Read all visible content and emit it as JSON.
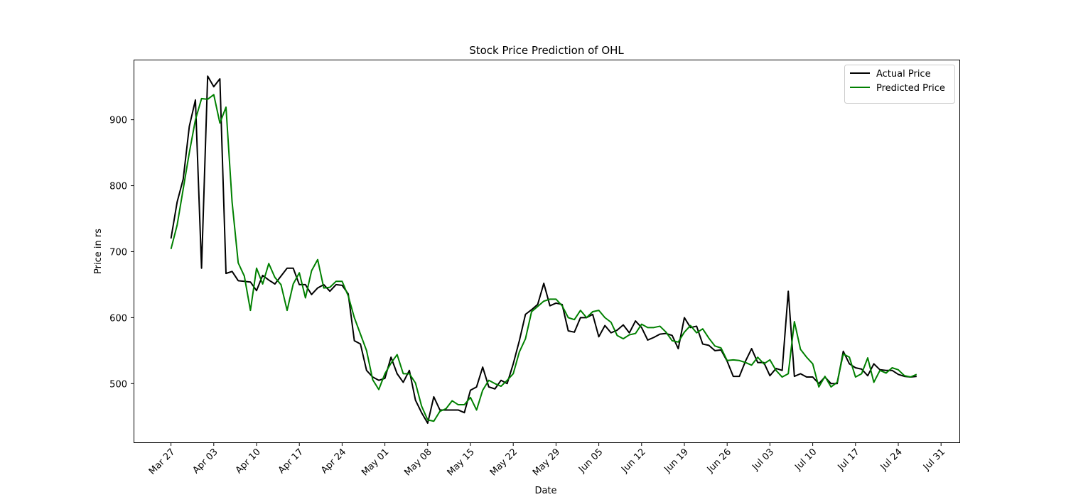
{
  "chart_data": {
    "type": "line",
    "title": "Stock Price Prediction of OHL",
    "xlabel": "Date",
    "ylabel": "Price in rs",
    "x_range": [
      "2023-03-21",
      "2023-08-03"
    ],
    "ylim": [
      411,
      990
    ],
    "grid": false,
    "legend_position": "top-right",
    "x_ticks": [
      {
        "label": "Mar 27",
        "date": "2023-03-27"
      },
      {
        "label": "Apr 03",
        "date": "2023-04-03"
      },
      {
        "label": "Apr 10",
        "date": "2023-04-10"
      },
      {
        "label": "Apr 17",
        "date": "2023-04-17"
      },
      {
        "label": "Apr 24",
        "date": "2023-04-24"
      },
      {
        "label": "May 01",
        "date": "2023-05-01"
      },
      {
        "label": "May 08",
        "date": "2023-05-08"
      },
      {
        "label": "May 15",
        "date": "2023-05-15"
      },
      {
        "label": "May 22",
        "date": "2023-05-22"
      },
      {
        "label": "May 29",
        "date": "2023-05-29"
      },
      {
        "label": "Jun 05",
        "date": "2023-06-05"
      },
      {
        "label": "Jun 12",
        "date": "2023-06-12"
      },
      {
        "label": "Jun 19",
        "date": "2023-06-19"
      },
      {
        "label": "Jun 26",
        "date": "2023-06-26"
      },
      {
        "label": "Jul 03",
        "date": "2023-07-03"
      },
      {
        "label": "Jul 10",
        "date": "2023-07-10"
      },
      {
        "label": "Jul 17",
        "date": "2023-07-17"
      },
      {
        "label": "Jul 24",
        "date": "2023-07-24"
      },
      {
        "label": "Jul 31",
        "date": "2023-07-31"
      }
    ],
    "y_ticks": [
      500,
      600,
      700,
      800,
      900
    ],
    "series": [
      {
        "name": "Actual Price",
        "color": "#000000",
        "points": [
          [
            "2023-03-27",
            720
          ],
          [
            "2023-03-28",
            775
          ],
          [
            "2023-03-29",
            810
          ],
          [
            "2023-03-30",
            890
          ],
          [
            "2023-03-31",
            930
          ],
          [
            "2023-04-01",
            675
          ],
          [
            "2023-04-02",
            966
          ],
          [
            "2023-04-03",
            950
          ],
          [
            "2023-04-04",
            962
          ],
          [
            "2023-04-05",
            667
          ],
          [
            "2023-04-06",
            670
          ],
          [
            "2023-04-07",
            656
          ],
          [
            "2023-04-08",
            655
          ],
          [
            "2023-04-09",
            654
          ],
          [
            "2023-04-10",
            641
          ],
          [
            "2023-04-11",
            664
          ],
          [
            "2023-04-12",
            657
          ],
          [
            "2023-04-13",
            651
          ],
          [
            "2023-04-14",
            663
          ],
          [
            "2023-04-15",
            675
          ],
          [
            "2023-04-16",
            675
          ],
          [
            "2023-04-17",
            650
          ],
          [
            "2023-04-18",
            650
          ],
          [
            "2023-04-19",
            635
          ],
          [
            "2023-04-20",
            645
          ],
          [
            "2023-04-21",
            650
          ],
          [
            "2023-04-22",
            640
          ],
          [
            "2023-04-23",
            650
          ],
          [
            "2023-04-24",
            649
          ],
          [
            "2023-04-25",
            636
          ],
          [
            "2023-04-26",
            565
          ],
          [
            "2023-04-27",
            560
          ],
          [
            "2023-04-28",
            520
          ],
          [
            "2023-04-29",
            510
          ],
          [
            "2023-04-30",
            505
          ],
          [
            "2023-05-01",
            508
          ],
          [
            "2023-05-02",
            540
          ],
          [
            "2023-05-03",
            515
          ],
          [
            "2023-05-04",
            502
          ],
          [
            "2023-05-05",
            520
          ],
          [
            "2023-05-06",
            475
          ],
          [
            "2023-05-07",
            456
          ],
          [
            "2023-05-08",
            440
          ],
          [
            "2023-05-09",
            480
          ],
          [
            "2023-05-10",
            460
          ],
          [
            "2023-05-11",
            460
          ],
          [
            "2023-05-12",
            460
          ],
          [
            "2023-05-13",
            460
          ],
          [
            "2023-05-14",
            456
          ],
          [
            "2023-05-15",
            490
          ],
          [
            "2023-05-16",
            495
          ],
          [
            "2023-05-17",
            525
          ],
          [
            "2023-05-18",
            495
          ],
          [
            "2023-05-19",
            492
          ],
          [
            "2023-05-20",
            505
          ],
          [
            "2023-05-21",
            500
          ],
          [
            "2023-05-22",
            530
          ],
          [
            "2023-05-23",
            565
          ],
          [
            "2023-05-24",
            605
          ],
          [
            "2023-05-25",
            612
          ],
          [
            "2023-05-26",
            620
          ],
          [
            "2023-05-27",
            652
          ],
          [
            "2023-05-28",
            618
          ],
          [
            "2023-05-29",
            622
          ],
          [
            "2023-05-30",
            620
          ],
          [
            "2023-05-31",
            580
          ],
          [
            "2023-06-01",
            578
          ],
          [
            "2023-06-02",
            600
          ],
          [
            "2023-06-03",
            600
          ],
          [
            "2023-06-04",
            605
          ],
          [
            "2023-06-05",
            571
          ],
          [
            "2023-06-06",
            588
          ],
          [
            "2023-06-07",
            577
          ],
          [
            "2023-06-08",
            581
          ],
          [
            "2023-06-09",
            589
          ],
          [
            "2023-06-10",
            577
          ],
          [
            "2023-06-11",
            595
          ],
          [
            "2023-06-12",
            585
          ],
          [
            "2023-06-13",
            566
          ],
          [
            "2023-06-14",
            570
          ],
          [
            "2023-06-15",
            575
          ],
          [
            "2023-06-16",
            576
          ],
          [
            "2023-06-17",
            573
          ],
          [
            "2023-06-18",
            553
          ],
          [
            "2023-06-19",
            600
          ],
          [
            "2023-06-20",
            585
          ],
          [
            "2023-06-21",
            587
          ],
          [
            "2023-06-22",
            560
          ],
          [
            "2023-06-23",
            558
          ],
          [
            "2023-06-24",
            550
          ],
          [
            "2023-06-25",
            551
          ],
          [
            "2023-06-26",
            534
          ],
          [
            "2023-06-27",
            511
          ],
          [
            "2023-06-28",
            511
          ],
          [
            "2023-06-29",
            534
          ],
          [
            "2023-06-30",
            553
          ],
          [
            "2023-07-01",
            532
          ],
          [
            "2023-07-02",
            532
          ],
          [
            "2023-07-03",
            512
          ],
          [
            "2023-07-04",
            523
          ],
          [
            "2023-07-05",
            520
          ],
          [
            "2023-07-06",
            640
          ],
          [
            "2023-07-07",
            511
          ],
          [
            "2023-07-08",
            515
          ],
          [
            "2023-07-09",
            510
          ],
          [
            "2023-07-10",
            510
          ],
          [
            "2023-07-11",
            500
          ],
          [
            "2023-07-12",
            510
          ],
          [
            "2023-07-13",
            500
          ],
          [
            "2023-07-14",
            500
          ],
          [
            "2023-07-15",
            549
          ],
          [
            "2023-07-16",
            530
          ],
          [
            "2023-07-17",
            524
          ],
          [
            "2023-07-18",
            522
          ],
          [
            "2023-07-19",
            512
          ],
          [
            "2023-07-20",
            530
          ],
          [
            "2023-07-21",
            521
          ],
          [
            "2023-07-22",
            520
          ],
          [
            "2023-07-23",
            520
          ],
          [
            "2023-07-24",
            514
          ],
          [
            "2023-07-25",
            511
          ],
          [
            "2023-07-26",
            510
          ],
          [
            "2023-07-27",
            511
          ]
        ]
      },
      {
        "name": "Predicted Price",
        "color": "#008000",
        "points": [
          [
            "2023-03-27",
            704
          ],
          [
            "2023-03-28",
            740
          ],
          [
            "2023-03-29",
            795
          ],
          [
            "2023-03-30",
            850
          ],
          [
            "2023-03-31",
            900
          ],
          [
            "2023-04-01",
            932
          ],
          [
            "2023-04-02",
            931
          ],
          [
            "2023-04-03",
            938
          ],
          [
            "2023-04-04",
            895
          ],
          [
            "2023-04-05",
            919
          ],
          [
            "2023-04-06",
            775
          ],
          [
            "2023-04-07",
            683
          ],
          [
            "2023-04-08",
            663
          ],
          [
            "2023-04-09",
            611
          ],
          [
            "2023-04-10",
            675
          ],
          [
            "2023-04-11",
            651
          ],
          [
            "2023-04-12",
            682
          ],
          [
            "2023-04-13",
            661
          ],
          [
            "2023-04-14",
            650
          ],
          [
            "2023-04-15",
            611
          ],
          [
            "2023-04-16",
            651
          ],
          [
            "2023-04-17",
            668
          ],
          [
            "2023-04-18",
            630
          ],
          [
            "2023-04-19",
            671
          ],
          [
            "2023-04-20",
            688
          ],
          [
            "2023-04-21",
            645
          ],
          [
            "2023-04-22",
            646
          ],
          [
            "2023-04-23",
            655
          ],
          [
            "2023-04-24",
            655
          ],
          [
            "2023-04-25",
            633
          ],
          [
            "2023-04-26",
            600
          ],
          [
            "2023-04-27",
            575
          ],
          [
            "2023-04-28",
            550
          ],
          [
            "2023-04-29",
            506
          ],
          [
            "2023-04-30",
            491
          ],
          [
            "2023-05-01",
            515
          ],
          [
            "2023-05-02",
            531
          ],
          [
            "2023-05-03",
            544
          ],
          [
            "2023-05-04",
            515
          ],
          [
            "2023-05-05",
            515
          ],
          [
            "2023-05-06",
            501
          ],
          [
            "2023-05-07",
            466
          ],
          [
            "2023-05-08",
            445
          ],
          [
            "2023-05-09",
            443
          ],
          [
            "2023-05-10",
            458
          ],
          [
            "2023-05-11",
            462
          ],
          [
            "2023-05-12",
            474
          ],
          [
            "2023-05-13",
            468
          ],
          [
            "2023-05-14",
            468
          ],
          [
            "2023-05-15",
            479
          ],
          [
            "2023-05-16",
            460
          ],
          [
            "2023-05-17",
            490
          ],
          [
            "2023-05-18",
            505
          ],
          [
            "2023-05-19",
            500
          ],
          [
            "2023-05-20",
            496
          ],
          [
            "2023-05-21",
            505
          ],
          [
            "2023-05-22",
            515
          ],
          [
            "2023-05-23",
            548
          ],
          [
            "2023-05-24",
            568
          ],
          [
            "2023-05-25",
            609
          ],
          [
            "2023-05-26",
            617
          ],
          [
            "2023-05-27",
            625
          ],
          [
            "2023-05-28",
            628
          ],
          [
            "2023-05-29",
            628
          ],
          [
            "2023-05-30",
            618
          ],
          [
            "2023-05-31",
            600
          ],
          [
            "2023-06-01",
            597
          ],
          [
            "2023-06-02",
            611
          ],
          [
            "2023-06-03",
            600
          ],
          [
            "2023-06-04",
            609
          ],
          [
            "2023-06-05",
            611
          ],
          [
            "2023-06-06",
            600
          ],
          [
            "2023-06-07",
            593
          ],
          [
            "2023-06-08",
            573
          ],
          [
            "2023-06-09",
            568
          ],
          [
            "2023-06-10",
            574
          ],
          [
            "2023-06-11",
            576
          ],
          [
            "2023-06-12",
            590
          ],
          [
            "2023-06-13",
            585
          ],
          [
            "2023-06-14",
            585
          ],
          [
            "2023-06-15",
            587
          ],
          [
            "2023-06-16",
            578
          ],
          [
            "2023-06-17",
            565
          ],
          [
            "2023-06-18",
            563
          ],
          [
            "2023-06-19",
            578
          ],
          [
            "2023-06-20",
            588
          ],
          [
            "2023-06-21",
            577
          ],
          [
            "2023-06-22",
            583
          ],
          [
            "2023-06-23",
            569
          ],
          [
            "2023-06-24",
            557
          ],
          [
            "2023-06-25",
            554
          ],
          [
            "2023-06-26",
            535
          ],
          [
            "2023-06-27",
            536
          ],
          [
            "2023-06-28",
            535
          ],
          [
            "2023-06-29",
            532
          ],
          [
            "2023-06-30",
            528
          ],
          [
            "2023-07-01",
            540
          ],
          [
            "2023-07-02",
            530
          ],
          [
            "2023-07-03",
            536
          ],
          [
            "2023-07-04",
            520
          ],
          [
            "2023-07-05",
            510
          ],
          [
            "2023-07-06",
            515
          ],
          [
            "2023-07-07",
            594
          ],
          [
            "2023-07-08",
            552
          ],
          [
            "2023-07-09",
            540
          ],
          [
            "2023-07-10",
            530
          ],
          [
            "2023-07-11",
            495
          ],
          [
            "2023-07-12",
            511
          ],
          [
            "2023-07-13",
            495
          ],
          [
            "2023-07-14",
            502
          ],
          [
            "2023-07-15",
            545
          ],
          [
            "2023-07-16",
            540
          ],
          [
            "2023-07-17",
            510
          ],
          [
            "2023-07-18",
            515
          ],
          [
            "2023-07-19",
            539
          ],
          [
            "2023-07-20",
            502
          ],
          [
            "2023-07-21",
            520
          ],
          [
            "2023-07-22",
            516
          ],
          [
            "2023-07-23",
            524
          ],
          [
            "2023-07-24",
            521
          ],
          [
            "2023-07-25",
            512
          ],
          [
            "2023-07-26",
            510
          ],
          [
            "2023-07-27",
            514
          ]
        ]
      }
    ]
  }
}
